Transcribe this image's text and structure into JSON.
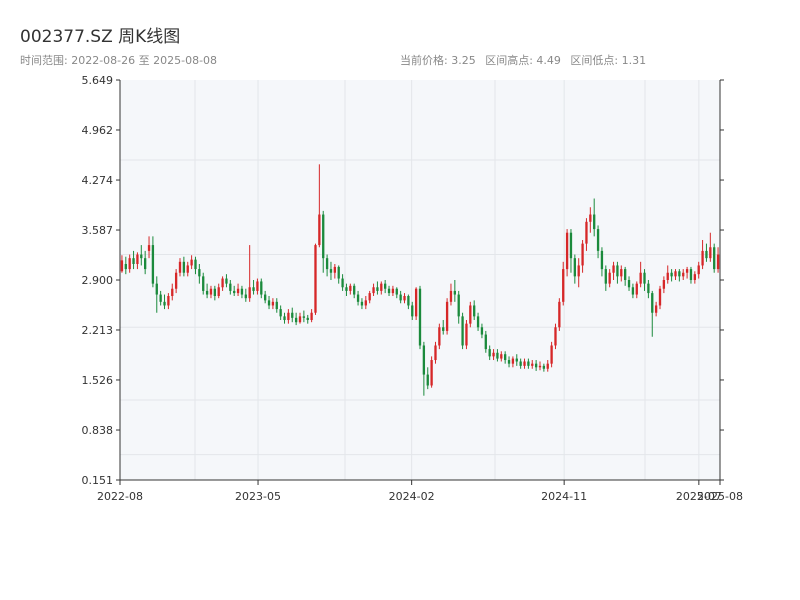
{
  "header": {
    "title": "002377.SZ 周K线图",
    "range_label": "时间范围: 2022-08-26 至 2025-08-08",
    "current_price": "当前价格: 3.25",
    "range_high": "区间高点: 4.49",
    "range_low": "区间低点: 1.31"
  },
  "colors": {
    "up": "#d62728",
    "down": "#1b8a3c",
    "plot_bg": "#f5f7fa",
    "grid": "#e3e6ea",
    "axis": "#333333"
  },
  "chart_data": {
    "type": "candlestick",
    "title": "002377.SZ 周K线图",
    "xlabel": "",
    "ylabel": "",
    "ylim": [
      0.151,
      5.649
    ],
    "yticks": [
      0.151,
      0.838,
      1.526,
      2.213,
      2.9,
      3.587,
      4.274,
      4.962,
      5.649
    ],
    "ytick_labels": [
      "0.151",
      "0.838",
      "1.526",
      "2.213",
      "2.900",
      "3.587",
      "4.274",
      "4.962",
      "5.649"
    ],
    "xticks": [
      {
        "date": "2022-08-26",
        "label": "2022-08"
      },
      {
        "date": "2023-05-01",
        "label": "2023-05"
      },
      {
        "date": "2024-02-01",
        "label": "2024-02"
      },
      {
        "date": "2024-11-01",
        "label": "2024-11"
      },
      {
        "date": "2025-07-01",
        "label": "2025-07"
      },
      {
        "date": "2025-08-08",
        "label": "2025-08"
      }
    ],
    "date_range": [
      "2022-08-26",
      "2025-08-08"
    ],
    "grid": true,
    "candles": [
      [
        3.02,
        3.17,
        3.24,
        3.0
      ],
      [
        3.12,
        3.05,
        3.22,
        2.98
      ],
      [
        3.05,
        3.2,
        3.25,
        3.0
      ],
      [
        3.2,
        3.12,
        3.3,
        3.05
      ],
      [
        3.12,
        3.25,
        3.28,
        3.05
      ],
      [
        3.25,
        3.2,
        3.38,
        3.1
      ],
      [
        3.2,
        3.05,
        3.3,
        2.98
      ],
      [
        3.3,
        3.38,
        3.5,
        3.2
      ],
      [
        3.38,
        2.85,
        3.5,
        2.8
      ],
      [
        2.85,
        2.7,
        2.95,
        2.45
      ],
      [
        2.7,
        2.6,
        2.75,
        2.55
      ],
      [
        2.6,
        2.55,
        2.7,
        2.5
      ],
      [
        2.55,
        2.68,
        2.72,
        2.5
      ],
      [
        2.68,
        2.78,
        2.85,
        2.62
      ],
      [
        2.78,
        3.0,
        3.05,
        2.72
      ],
      [
        3.0,
        3.15,
        3.2,
        2.95
      ],
      [
        3.15,
        3.0,
        3.22,
        2.95
      ],
      [
        3.0,
        3.1,
        3.15,
        2.95
      ],
      [
        3.1,
        3.18,
        3.24,
        3.05
      ],
      [
        3.18,
        3.05,
        3.22,
        2.98
      ],
      [
        3.05,
        2.95,
        3.12,
        2.85
      ],
      [
        2.95,
        2.75,
        3.0,
        2.7
      ],
      [
        2.75,
        2.7,
        2.85,
        2.65
      ],
      [
        2.7,
        2.78,
        2.82,
        2.65
      ],
      [
        2.78,
        2.68,
        2.82,
        2.62
      ],
      [
        2.68,
        2.8,
        2.85,
        2.65
      ],
      [
        2.8,
        2.92,
        2.95,
        2.75
      ],
      [
        2.92,
        2.85,
        2.98,
        2.8
      ],
      [
        2.85,
        2.75,
        2.9,
        2.7
      ],
      [
        2.75,
        2.72,
        2.82,
        2.68
      ],
      [
        2.72,
        2.78,
        2.85,
        2.68
      ],
      [
        2.78,
        2.7,
        2.82,
        2.65
      ],
      [
        2.7,
        2.65,
        2.78,
        2.6
      ],
      [
        2.65,
        2.8,
        3.38,
        2.6
      ],
      [
        2.8,
        2.75,
        2.9,
        2.7
      ],
      [
        2.75,
        2.88,
        2.92,
        2.7
      ],
      [
        2.88,
        2.7,
        2.92,
        2.65
      ],
      [
        2.7,
        2.62,
        2.75,
        2.58
      ],
      [
        2.62,
        2.55,
        2.68,
        2.5
      ],
      [
        2.55,
        2.6,
        2.65,
        2.5
      ],
      [
        2.6,
        2.5,
        2.65,
        2.45
      ],
      [
        2.5,
        2.4,
        2.55,
        2.35
      ],
      [
        2.4,
        2.35,
        2.45,
        2.3
      ],
      [
        2.35,
        2.45,
        2.5,
        2.3
      ],
      [
        2.45,
        2.38,
        2.52,
        2.32
      ],
      [
        2.38,
        2.32,
        2.45,
        2.28
      ],
      [
        2.32,
        2.4,
        2.45,
        2.3
      ],
      [
        2.4,
        2.38,
        2.48,
        2.32
      ],
      [
        2.38,
        2.35,
        2.42,
        2.3
      ],
      [
        2.35,
        2.45,
        2.5,
        2.32
      ],
      [
        2.45,
        3.38,
        3.4,
        2.42
      ],
      [
        3.38,
        3.8,
        4.49,
        3.35
      ],
      [
        3.8,
        3.2,
        3.85,
        3.0
      ],
      [
        3.2,
        3.05,
        3.25,
        2.95
      ],
      [
        3.05,
        3.0,
        3.15,
        2.9
      ],
      [
        3.0,
        3.08,
        3.12,
        2.92
      ],
      [
        3.08,
        2.92,
        3.1,
        2.85
      ],
      [
        2.92,
        2.8,
        2.98,
        2.75
      ],
      [
        2.8,
        2.75,
        2.85,
        2.68
      ],
      [
        2.75,
        2.82,
        2.85,
        2.7
      ],
      [
        2.82,
        2.7,
        2.85,
        2.65
      ],
      [
        2.7,
        2.6,
        2.75,
        2.55
      ],
      [
        2.6,
        2.55,
        2.65,
        2.5
      ],
      [
        2.55,
        2.62,
        2.68,
        2.5
      ],
      [
        2.62,
        2.72,
        2.75,
        2.58
      ],
      [
        2.72,
        2.8,
        2.85,
        2.68
      ],
      [
        2.8,
        2.75,
        2.88,
        2.7
      ],
      [
        2.75,
        2.85,
        2.88,
        2.7
      ],
      [
        2.85,
        2.78,
        2.9,
        2.72
      ],
      [
        2.78,
        2.72,
        2.82,
        2.68
      ],
      [
        2.72,
        2.78,
        2.82,
        2.68
      ],
      [
        2.78,
        2.7,
        2.8,
        2.65
      ],
      [
        2.7,
        2.62,
        2.75,
        2.58
      ],
      [
        2.62,
        2.68,
        2.72,
        2.58
      ],
      [
        2.68,
        2.55,
        2.7,
        2.5
      ],
      [
        2.55,
        2.4,
        2.6,
        2.35
      ],
      [
        2.4,
        2.78,
        2.8,
        2.35
      ],
      [
        2.78,
        2.0,
        2.82,
        1.95
      ],
      [
        2.0,
        1.6,
        2.05,
        1.31
      ],
      [
        1.6,
        1.45,
        1.7,
        1.4
      ],
      [
        1.45,
        1.8,
        1.85,
        1.42
      ],
      [
        1.8,
        2.0,
        2.05,
        1.75
      ],
      [
        2.0,
        2.25,
        2.3,
        1.95
      ],
      [
        2.25,
        2.2,
        2.35,
        2.15
      ],
      [
        2.2,
        2.6,
        2.65,
        2.15
      ],
      [
        2.6,
        2.75,
        2.85,
        2.55
      ],
      [
        2.75,
        2.7,
        2.9,
        2.6
      ],
      [
        2.7,
        2.4,
        2.75,
        2.3
      ],
      [
        2.4,
        2.0,
        2.45,
        1.95
      ],
      [
        2.0,
        2.3,
        2.35,
        1.95
      ],
      [
        2.3,
        2.55,
        2.6,
        2.25
      ],
      [
        2.55,
        2.4,
        2.62,
        2.35
      ],
      [
        2.4,
        2.25,
        2.45,
        2.2
      ],
      [
        2.25,
        2.15,
        2.3,
        2.1
      ],
      [
        2.15,
        1.95,
        2.2,
        1.9
      ],
      [
        1.95,
        1.85,
        2.0,
        1.8
      ],
      [
        1.85,
        1.9,
        1.95,
        1.8
      ],
      [
        1.9,
        1.82,
        1.95,
        1.78
      ],
      [
        1.82,
        1.88,
        1.92,
        1.78
      ],
      [
        1.88,
        1.8,
        1.92,
        1.75
      ],
      [
        1.8,
        1.75,
        1.85,
        1.7
      ],
      [
        1.75,
        1.82,
        1.85,
        1.7
      ],
      [
        1.82,
        1.78,
        1.88,
        1.72
      ],
      [
        1.78,
        1.72,
        1.82,
        1.68
      ],
      [
        1.72,
        1.78,
        1.82,
        1.68
      ],
      [
        1.78,
        1.72,
        1.82,
        1.68
      ],
      [
        1.72,
        1.75,
        1.8,
        1.68
      ],
      [
        1.75,
        1.7,
        1.8,
        1.65
      ],
      [
        1.7,
        1.72,
        1.78,
        1.66
      ],
      [
        1.72,
        1.68,
        1.75,
        1.64
      ],
      [
        1.68,
        1.75,
        1.8,
        1.64
      ],
      [
        1.75,
        2.0,
        2.05,
        1.7
      ],
      [
        2.0,
        2.25,
        2.3,
        1.95
      ],
      [
        2.25,
        2.6,
        2.65,
        2.2
      ],
      [
        2.6,
        3.05,
        3.15,
        2.55
      ],
      [
        3.05,
        3.55,
        3.6,
        2.95
      ],
      [
        3.55,
        3.2,
        3.6,
        3.0
      ],
      [
        3.2,
        2.95,
        3.25,
        2.85
      ],
      [
        2.95,
        3.1,
        3.2,
        2.8
      ],
      [
        3.1,
        3.4,
        3.45,
        3.0
      ],
      [
        3.4,
        3.7,
        3.75,
        3.3
      ],
      [
        3.7,
        3.8,
        3.9,
        3.55
      ],
      [
        3.8,
        3.6,
        4.02,
        3.5
      ],
      [
        3.6,
        3.3,
        3.65,
        3.2
      ],
      [
        3.3,
        3.05,
        3.35,
        2.95
      ],
      [
        3.05,
        2.85,
        3.1,
        2.75
      ],
      [
        2.85,
        3.0,
        3.05,
        2.8
      ],
      [
        3.0,
        3.1,
        3.15,
        2.9
      ],
      [
        3.1,
        2.95,
        3.15,
        2.85
      ],
      [
        2.95,
        3.05,
        3.1,
        2.88
      ],
      [
        3.05,
        2.9,
        3.08,
        2.82
      ],
      [
        2.9,
        2.8,
        2.95,
        2.75
      ],
      [
        2.8,
        2.7,
        2.85,
        2.65
      ],
      [
        2.7,
        2.85,
        2.88,
        2.65
      ],
      [
        2.85,
        3.0,
        3.15,
        2.8
      ],
      [
        3.0,
        2.85,
        3.05,
        2.75
      ],
      [
        2.85,
        2.72,
        2.9,
        2.65
      ],
      [
        2.72,
        2.45,
        2.75,
        2.12
      ],
      [
        2.45,
        2.55,
        2.6,
        2.4
      ],
      [
        2.55,
        2.78,
        2.82,
        2.5
      ],
      [
        2.78,
        2.9,
        2.95,
        2.72
      ],
      [
        2.9,
        3.0,
        3.1,
        2.85
      ],
      [
        3.0,
        2.95,
        3.05,
        2.88
      ],
      [
        2.95,
        3.02,
        3.05,
        2.9
      ],
      [
        3.02,
        2.95,
        3.05,
        2.88
      ],
      [
        2.95,
        3.0,
        3.05,
        2.9
      ],
      [
        3.0,
        3.05,
        3.08,
        2.92
      ],
      [
        3.05,
        2.9,
        3.08,
        2.85
      ],
      [
        2.9,
        2.98,
        3.02,
        2.85
      ],
      [
        2.98,
        3.1,
        3.15,
        2.92
      ],
      [
        3.1,
        3.3,
        3.45,
        3.05
      ],
      [
        3.3,
        3.2,
        3.4,
        3.15
      ],
      [
        3.2,
        3.35,
        3.55,
        3.15
      ],
      [
        3.35,
        3.05,
        3.4,
        3.0
      ],
      [
        3.05,
        3.25,
        3.35,
        3.0
      ]
    ]
  }
}
